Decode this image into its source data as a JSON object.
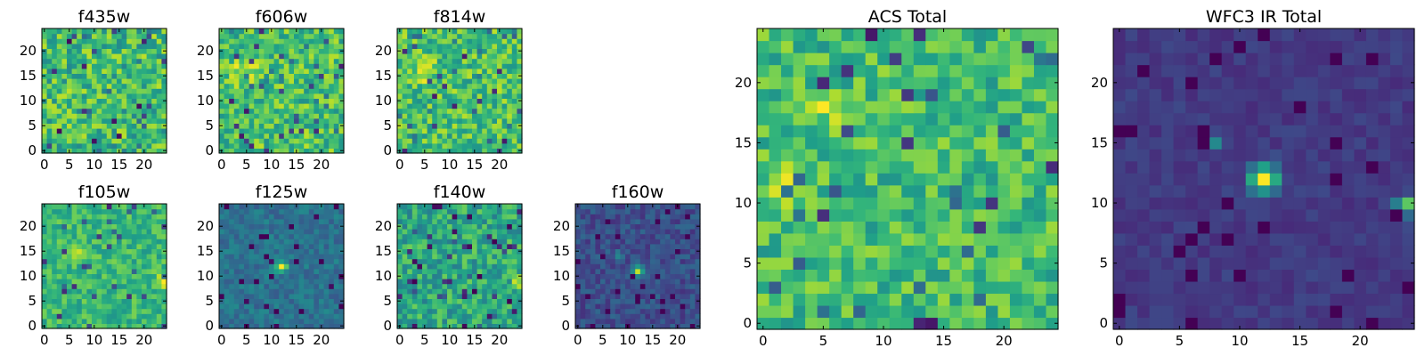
{
  "chart_data": [
    {
      "type": "heatmap",
      "title": "f435w",
      "grid_size": 25,
      "colormap": "viridis",
      "x_ticks": [
        "0",
        "5",
        "10",
        "15",
        "20"
      ],
      "y_ticks": [
        "0",
        "5",
        "10",
        "15",
        "20"
      ],
      "xlim": [
        -0.5,
        24.5
      ],
      "ylim": [
        -0.5,
        24.5
      ],
      "pattern": {
        "base": 0.68,
        "noise": 0.22,
        "seed": 11,
        "peaks": []
      }
    },
    {
      "type": "heatmap",
      "title": "f606w",
      "grid_size": 25,
      "colormap": "viridis",
      "x_ticks": [
        "0",
        "5",
        "10",
        "15",
        "20"
      ],
      "y_ticks": [
        "0",
        "5",
        "10",
        "15",
        "20"
      ],
      "xlim": [
        -0.5,
        24.5
      ],
      "ylim": [
        -0.5,
        24.5
      ],
      "pattern": {
        "base": 0.7,
        "noise": 0.2,
        "seed": 23,
        "peaks": [
          {
            "x": 5,
            "y": 16,
            "amp": 0.25,
            "sigma": 1.6
          }
        ]
      }
    },
    {
      "type": "heatmap",
      "title": "f814w",
      "grid_size": 25,
      "colormap": "viridis",
      "x_ticks": [
        "0",
        "5",
        "10",
        "15",
        "20"
      ],
      "y_ticks": [
        "0",
        "5",
        "10",
        "15",
        "20"
      ],
      "xlim": [
        -0.5,
        24.5
      ],
      "ylim": [
        -0.5,
        24.5
      ],
      "pattern": {
        "base": 0.7,
        "noise": 0.2,
        "seed": 37,
        "peaks": [
          {
            "x": 5,
            "y": 16,
            "amp": 0.2,
            "sigma": 1.5
          }
        ]
      }
    },
    {
      "type": "heatmap",
      "title": "f105w",
      "grid_size": 25,
      "colormap": "viridis",
      "x_ticks": [
        "0",
        "5",
        "10",
        "15",
        "20"
      ],
      "y_ticks": [
        "0",
        "5",
        "10",
        "15",
        "20"
      ],
      "xlim": [
        -0.5,
        24.5
      ],
      "ylim": [
        -0.5,
        24.5
      ],
      "pattern": {
        "base": 0.66,
        "noise": 0.14,
        "seed": 41,
        "peaks": [
          {
            "x": 6,
            "y": 15,
            "amp": 0.3,
            "sigma": 0.9
          },
          {
            "x": 24,
            "y": 9,
            "amp": 0.3,
            "sigma": 1.0
          }
        ]
      }
    },
    {
      "type": "heatmap",
      "title": "f125w",
      "grid_size": 25,
      "colormap": "viridis",
      "x_ticks": [
        "0",
        "5",
        "10",
        "15",
        "20"
      ],
      "y_ticks": [
        "0",
        "5",
        "10",
        "15",
        "20"
      ],
      "xlim": [
        -0.5,
        24.5
      ],
      "ylim": [
        -0.5,
        24.5
      ],
      "pattern": {
        "base": 0.38,
        "noise": 0.1,
        "seed": 53,
        "peaks": [
          {
            "x": 12,
            "y": 12,
            "amp": 0.6,
            "sigma": 0.8
          }
        ]
      }
    },
    {
      "type": "heatmap",
      "title": "f140w",
      "grid_size": 25,
      "colormap": "viridis",
      "x_ticks": [
        "0",
        "5",
        "10",
        "15",
        "20"
      ],
      "y_ticks": [
        "0",
        "5",
        "10",
        "15",
        "20"
      ],
      "xlim": [
        -0.5,
        24.5
      ],
      "ylim": [
        -0.5,
        24.5
      ],
      "pattern": {
        "base": 0.6,
        "noise": 0.18,
        "seed": 67,
        "peaks": [
          {
            "x": 24,
            "y": 9,
            "amp": 0.35,
            "sigma": 0.9
          }
        ]
      }
    },
    {
      "type": "heatmap",
      "title": "f160w",
      "grid_size": 25,
      "colormap": "viridis",
      "x_ticks": [
        "0",
        "5",
        "10",
        "15",
        "20"
      ],
      "y_ticks": [
        "0",
        "5",
        "10",
        "15",
        "20"
      ],
      "xlim": [
        -0.5,
        24.5
      ],
      "ylim": [
        -0.5,
        24.5
      ],
      "pattern": {
        "base": 0.24,
        "noise": 0.1,
        "seed": 79,
        "peaks": [
          {
            "x": 12,
            "y": 11,
            "amp": 0.75,
            "sigma": 0.75
          },
          {
            "x": 8,
            "y": 14,
            "amp": 0.25,
            "sigma": 0.7
          }
        ]
      }
    },
    {
      "type": "heatmap",
      "title": "ACS Total",
      "grid_size": 25,
      "colormap": "viridis",
      "x_ticks": [
        "0",
        "5",
        "10",
        "15",
        "20"
      ],
      "y_ticks": [
        "0",
        "5",
        "10",
        "15",
        "20"
      ],
      "xlim": [
        -0.5,
        24.5
      ],
      "ylim": [
        -0.5,
        24.5
      ],
      "pattern": {
        "base": 0.68,
        "noise": 0.17,
        "seed": 97,
        "peaks": [
          {
            "x": 5.5,
            "y": 18,
            "amp": 0.3,
            "sigma": 0.9
          },
          {
            "x": 2,
            "y": 12,
            "amp": 0.15,
            "sigma": 1.5
          }
        ]
      }
    },
    {
      "type": "heatmap",
      "title": "WFC3 IR Total",
      "grid_size": 25,
      "colormap": "viridis",
      "x_ticks": [
        "0",
        "5",
        "10",
        "15",
        "20"
      ],
      "y_ticks": [
        "0",
        "5",
        "10",
        "15",
        "20"
      ],
      "xlim": [
        -0.5,
        24.5
      ],
      "ylim": [
        -0.5,
        24.5
      ],
      "pattern": {
        "base": 0.17,
        "noise": 0.05,
        "seed": 101,
        "peaks": [
          {
            "x": 12,
            "y": 12,
            "amp": 0.85,
            "sigma": 0.8
          },
          {
            "x": 24,
            "y": 9.5,
            "amp": 0.75,
            "sigma": 0.7
          },
          {
            "x": 8,
            "y": 15,
            "amp": 0.3,
            "sigma": 0.5
          }
        ]
      }
    }
  ]
}
